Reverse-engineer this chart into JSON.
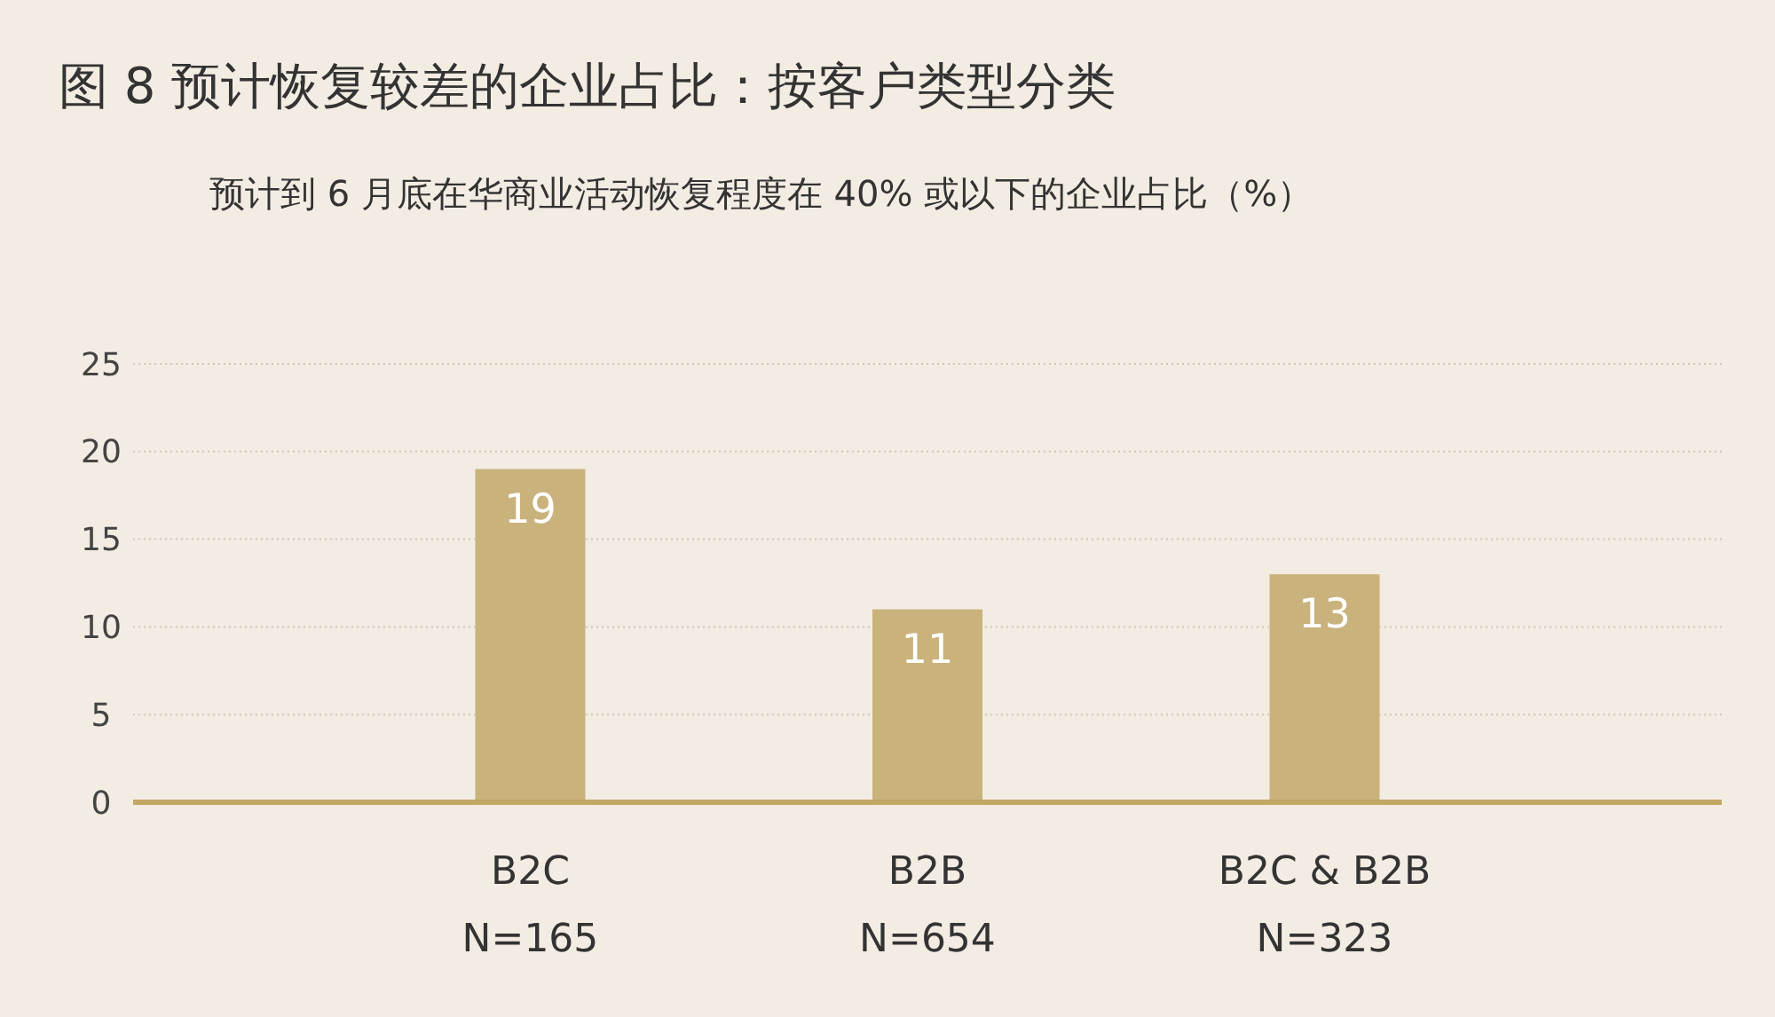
{
  "chart_data": {
    "type": "bar",
    "title": "图 8  预计恢复较差的企业占比：按客户类型分类",
    "subtitle": "预计到 6 月底在华商业活动恢复程度在 40% 或以下的企业占比（%）",
    "categories": [
      "B2C\nN=165",
      "B2B\nN=654",
      "B2C & B2B\nN=323"
    ],
    "values": [
      19,
      11,
      13
    ],
    "color": "#c9b27c",
    "ylim": [
      0,
      25
    ],
    "yticks": [
      0,
      5,
      10,
      15,
      20,
      25
    ],
    "grid": "y",
    "data_labels": true
  }
}
